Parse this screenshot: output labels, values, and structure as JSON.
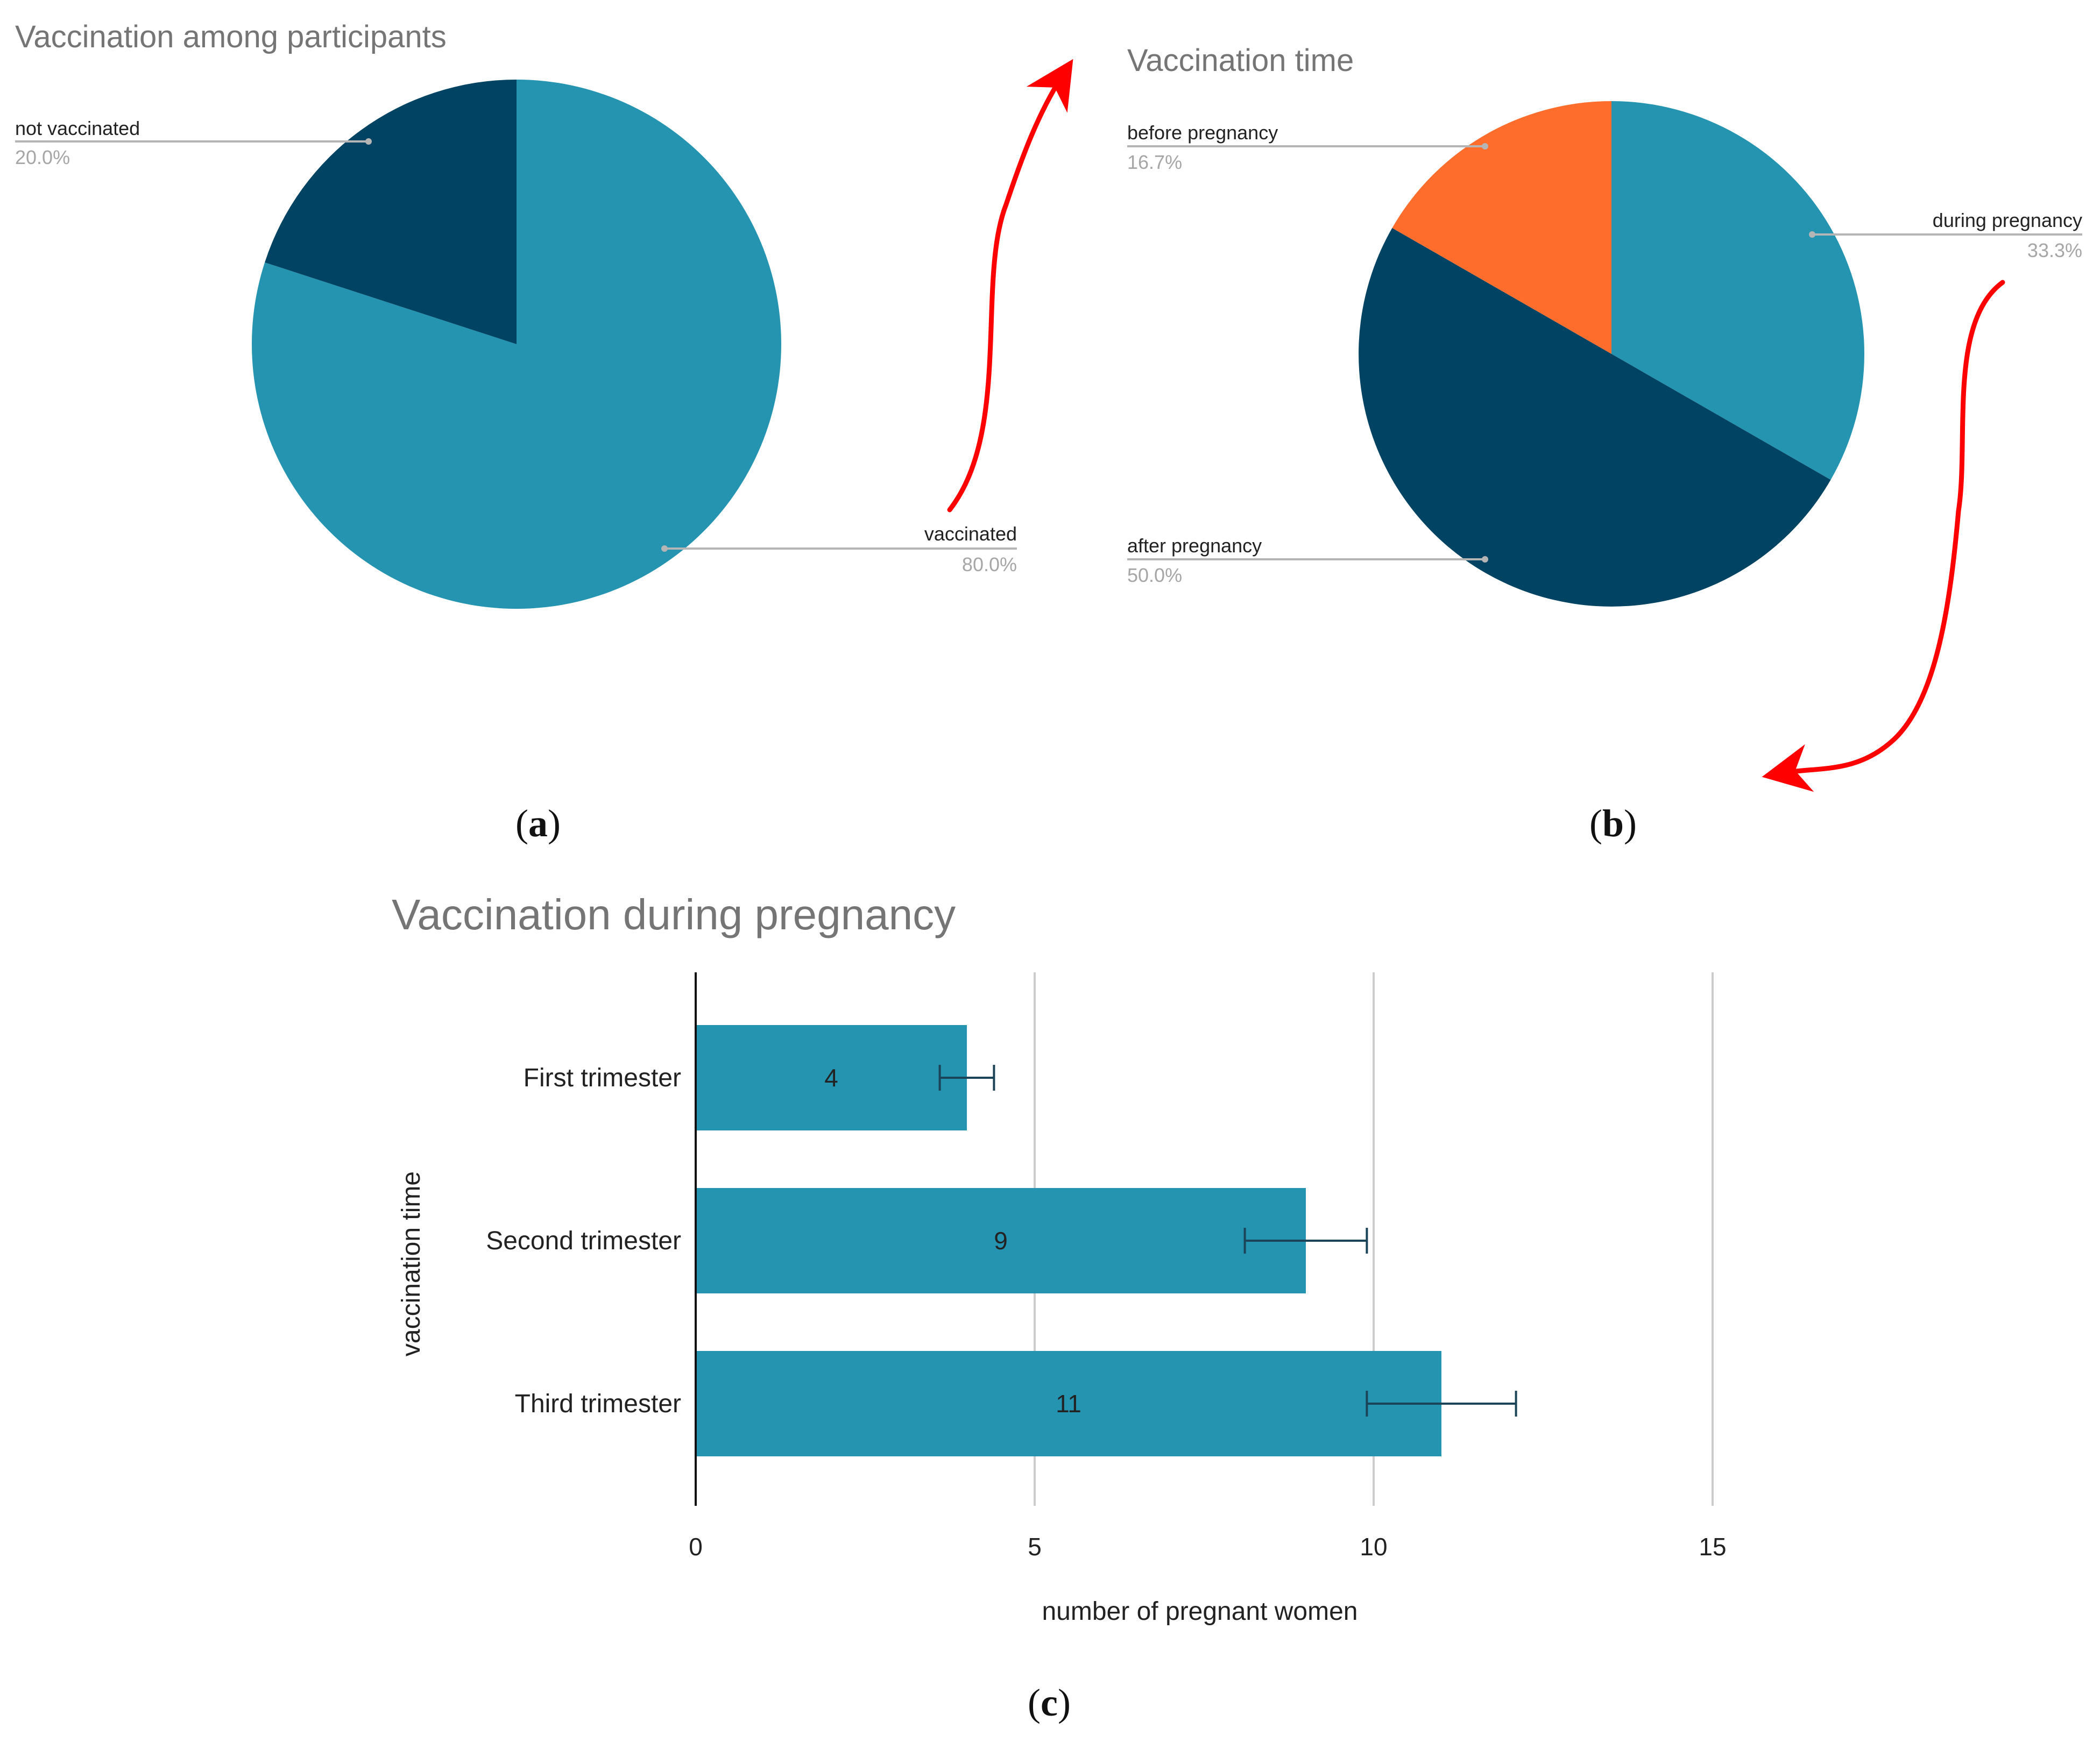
{
  "colors": {
    "teal": "#2494b1",
    "navy": "#014362",
    "orange": "#ff6d2d",
    "arrow": "#ff0000",
    "leader": "#b5b5b5",
    "grid": "#cccccc",
    "axis": "#111111",
    "errorbar": "#1c4458"
  },
  "panels": {
    "a": "a",
    "b": "b",
    "c": "c"
  },
  "chart_data": [
    {
      "type": "pie",
      "panel": "a",
      "title": "Vaccination among participants",
      "slices": [
        {
          "label": "vaccinated",
          "value": 80.0,
          "pct_label": "80.0%",
          "color": "#2494b1"
        },
        {
          "label": "not vaccinated",
          "value": 20.0,
          "pct_label": "20.0%",
          "color": "#014362"
        }
      ]
    },
    {
      "type": "pie",
      "panel": "b",
      "title": "Vaccination time",
      "slices": [
        {
          "label": "during pregnancy",
          "value": 33.3,
          "pct_label": "33.3%",
          "color": "#2494b1"
        },
        {
          "label": "after pregnancy",
          "value": 50.0,
          "pct_label": "50.0%",
          "color": "#014362"
        },
        {
          "label": "before pregnancy",
          "value": 16.7,
          "pct_label": "16.7%",
          "color": "#ff6d2d"
        }
      ]
    },
    {
      "type": "bar",
      "orientation": "horizontal",
      "panel": "c",
      "title": "Vaccination during pregnancy",
      "categories": [
        "First trimester",
        "Second trimester",
        "Third trimester"
      ],
      "values": [
        4,
        9,
        11
      ],
      "value_labels": [
        "4",
        "9",
        "11"
      ],
      "error_bars": [
        [
          3.6,
          4.4
        ],
        [
          8.1,
          9.9
        ],
        [
          9.9,
          12.1
        ]
      ],
      "xlabel": "number of pregnant women",
      "ylabel": "vaccination time",
      "xlim": [
        0,
        15
      ],
      "xticks": [
        0,
        5,
        10,
        15
      ],
      "xtick_labels": [
        "0",
        "5",
        "10",
        "15"
      ],
      "grid": true,
      "color": "#2494b1"
    }
  ]
}
